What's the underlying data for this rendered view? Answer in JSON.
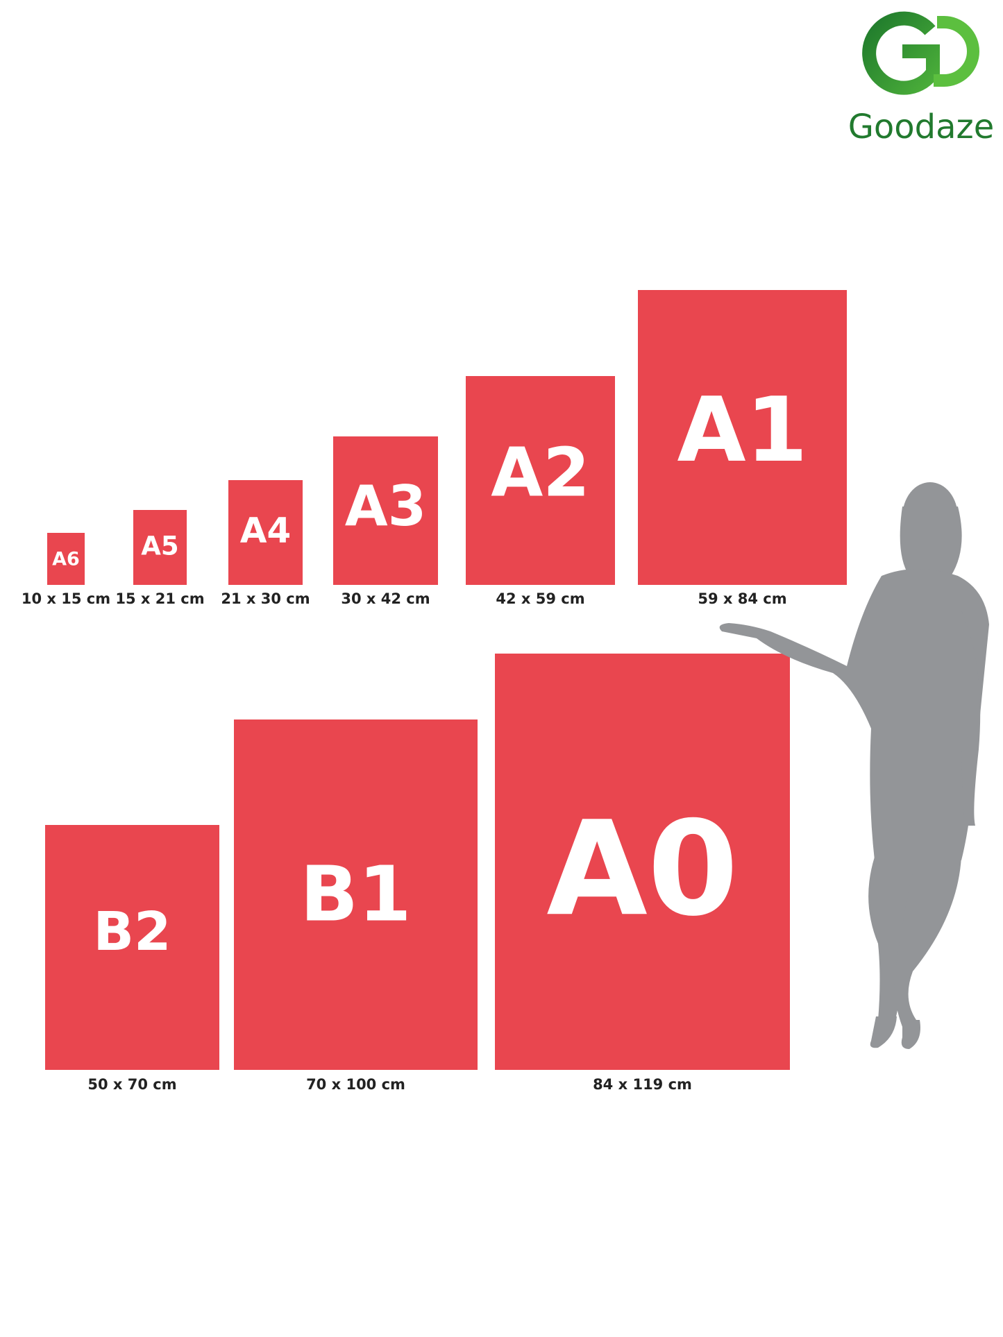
{
  "logo": {
    "name": "Goodaze"
  },
  "sizes": [
    {
      "label": "A6",
      "dimensions": "10 x 15 cm"
    },
    {
      "label": "A5",
      "dimensions": "15 x 21 cm"
    },
    {
      "label": "A4",
      "dimensions": "21 x 30 cm"
    },
    {
      "label": "A3",
      "dimensions": "30 x 42 cm"
    },
    {
      "label": "A2",
      "dimensions": "42 x 59 cm"
    },
    {
      "label": "A1",
      "dimensions": "59 x 84 cm"
    },
    {
      "label": "B2",
      "dimensions": "50 x 70 cm"
    },
    {
      "label": "B1",
      "dimensions": "70 x 100 cm"
    },
    {
      "label": "A0",
      "dimensions": "84 x 119 cm"
    }
  ]
}
